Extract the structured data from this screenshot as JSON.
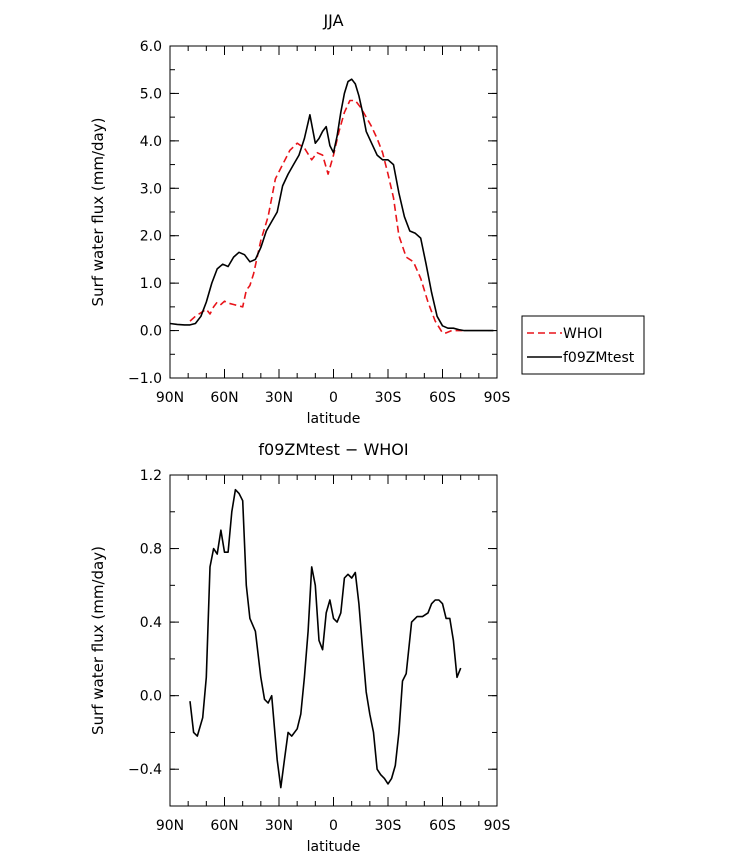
{
  "chart_data": [
    {
      "type": "line",
      "title": "JJA",
      "xlabel": "latitude",
      "ylabel": "Surf water flux (mm/day)",
      "xlim": [
        90,
        -90
      ],
      "ylim": [
        -1.0,
        6.0
      ],
      "x_ticks": [
        90,
        60,
        30,
        0,
        -30,
        -60,
        -90
      ],
      "x_tick_labels": [
        "90N",
        "60N",
        "30N",
        "0",
        "30S",
        "60S",
        "90S"
      ],
      "y_ticks": [
        -1,
        0,
        1,
        2,
        3,
        4,
        5,
        6
      ],
      "y_tick_labels": [
        "−1.0",
        "0.0",
        "1.0",
        "2.0",
        "3.0",
        "4.0",
        "5.0",
        "6.0"
      ],
      "legend": "right",
      "series": [
        {
          "name": "WHOI",
          "color": "#e8141a",
          "style": "dashed",
          "x": [
            79,
            76,
            72,
            70,
            68,
            66,
            64,
            62,
            60,
            58,
            55,
            52,
            50,
            48,
            46,
            44,
            42,
            40,
            36,
            32,
            28,
            24,
            20,
            16,
            12,
            9,
            6,
            3,
            0,
            -3,
            -6,
            -9,
            -12,
            -15,
            -18,
            -21,
            -24,
            -27,
            -30,
            -33,
            -36,
            -40,
            -44,
            -48,
            -52,
            -56,
            -60,
            -62,
            -65,
            -68,
            -71
          ],
          "values": [
            0.2,
            0.3,
            0.4,
            0.45,
            0.35,
            0.5,
            0.6,
            0.55,
            0.62,
            0.58,
            0.55,
            0.52,
            0.5,
            0.85,
            0.95,
            1.2,
            1.55,
            1.9,
            2.4,
            3.2,
            3.5,
            3.8,
            3.95,
            3.85,
            3.6,
            3.75,
            3.7,
            3.3,
            3.7,
            4.2,
            4.6,
            4.85,
            4.85,
            4.7,
            4.5,
            4.3,
            4.05,
            3.75,
            3.3,
            2.8,
            2.0,
            1.55,
            1.45,
            1.1,
            0.6,
            0.2,
            -0.05,
            -0.05,
            0.0,
            0.0,
            0.0
          ]
        },
        {
          "name": "f09ZMtest",
          "color": "#000000",
          "style": "solid",
          "x": [
            90,
            86,
            82,
            79,
            76,
            73,
            70,
            67,
            64,
            61,
            58,
            55,
            52,
            49,
            46,
            43,
            40,
            37,
            34,
            31,
            28,
            25,
            22,
            19,
            16,
            13,
            10,
            8,
            6,
            4,
            2,
            0,
            -2,
            -4,
            -6,
            -8,
            -10,
            -12,
            -14,
            -16,
            -18,
            -21,
            -24,
            -27,
            -30,
            -33,
            -36,
            -39,
            -42,
            -45,
            -48,
            -51,
            -54,
            -57,
            -60,
            -63,
            -66,
            -69,
            -72,
            -75,
            -80,
            -85,
            -88
          ],
          "values": [
            0.15,
            0.13,
            0.12,
            0.12,
            0.15,
            0.3,
            0.6,
            1.0,
            1.3,
            1.4,
            1.35,
            1.55,
            1.65,
            1.6,
            1.45,
            1.5,
            1.75,
            2.1,
            2.3,
            2.5,
            3.05,
            3.3,
            3.5,
            3.7,
            4.05,
            4.55,
            3.95,
            4.05,
            4.2,
            4.3,
            3.9,
            3.75,
            4.1,
            4.6,
            5.0,
            5.25,
            5.3,
            5.2,
            4.95,
            4.6,
            4.2,
            3.95,
            3.7,
            3.6,
            3.6,
            3.5,
            2.9,
            2.4,
            2.1,
            2.05,
            1.95,
            1.4,
            0.8,
            0.3,
            0.1,
            0.05,
            0.05,
            0.02,
            0.0,
            0.0,
            0.0,
            0.0,
            0.0
          ]
        }
      ]
    },
    {
      "type": "line",
      "title": "f09ZMtest − WHOI",
      "xlabel": "latitude",
      "ylabel": "Surf water flux (mm/day)",
      "xlim": [
        90,
        -90
      ],
      "ylim": [
        -0.6,
        1.2
      ],
      "x_ticks": [
        90,
        60,
        30,
        0,
        -30,
        -60,
        -90
      ],
      "x_tick_labels": [
        "90N",
        "60N",
        "30N",
        "0",
        "30S",
        "60S",
        "90S"
      ],
      "y_ticks": [
        -0.4,
        0.0,
        0.4,
        0.8,
        1.2
      ],
      "y_tick_labels": [
        "−0.4",
        "0.0",
        "0.4",
        "0.8",
        "1.2"
      ],
      "series": [
        {
          "color": "#000000",
          "style": "solid",
          "x": [
            79,
            77,
            75,
            72,
            70,
            68,
            66,
            64,
            62,
            60,
            58,
            56,
            54,
            52,
            50,
            48,
            46,
            43,
            40,
            38,
            36,
            34,
            31,
            29,
            27,
            25,
            23,
            20,
            18,
            16,
            14,
            12,
            10,
            8,
            6,
            4,
            2,
            0,
            -2,
            -4,
            -6,
            -8,
            -10,
            -12,
            -14,
            -16,
            -18,
            -20,
            -22,
            -24,
            -26,
            -28,
            -30,
            -32,
            -34,
            -36,
            -38,
            -40,
            -43,
            -46,
            -49,
            -52,
            -54,
            -56,
            -58,
            -60,
            -62,
            -64,
            -66,
            -68,
            -70
          ],
          "values": [
            -0.03,
            -0.2,
            -0.22,
            -0.12,
            0.1,
            0.7,
            0.8,
            0.77,
            0.9,
            0.78,
            0.78,
            1.0,
            1.12,
            1.1,
            1.06,
            0.6,
            0.42,
            0.35,
            0.1,
            -0.02,
            -0.04,
            0.0,
            -0.35,
            -0.5,
            -0.35,
            -0.2,
            -0.22,
            -0.18,
            -0.1,
            0.1,
            0.35,
            0.7,
            0.6,
            0.3,
            0.25,
            0.45,
            0.52,
            0.42,
            0.4,
            0.45,
            0.64,
            0.66,
            0.64,
            0.67,
            0.5,
            0.25,
            0.02,
            -0.1,
            -0.2,
            -0.4,
            -0.43,
            -0.45,
            -0.48,
            -0.45,
            -0.38,
            -0.2,
            0.08,
            0.12,
            0.4,
            0.43,
            0.43,
            0.45,
            0.5,
            0.52,
            0.52,
            0.5,
            0.42,
            0.42,
            0.3,
            0.1,
            0.15
          ]
        }
      ]
    }
  ]
}
